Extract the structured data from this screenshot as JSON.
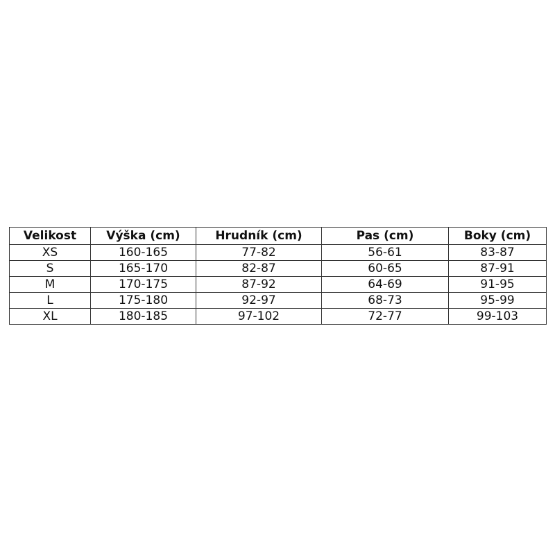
{
  "table": {
    "headers": [
      "Velikost",
      "Výška (cm)",
      "Hrudník (cm)",
      "Pas (cm)",
      "Boky (cm)"
    ],
    "rows": [
      [
        "XS",
        "160-165",
        "77-82",
        "56-61",
        "83-87"
      ],
      [
        "S",
        "165-170",
        "82-87",
        "60-65",
        "87-91"
      ],
      [
        "M",
        "170-175",
        "87-92",
        "64-69",
        "91-95"
      ],
      [
        "L",
        "175-180",
        "92-97",
        "68-73",
        "95-99"
      ],
      [
        "XL",
        "180-185",
        "97-102",
        "72-77",
        "99-103"
      ]
    ]
  }
}
